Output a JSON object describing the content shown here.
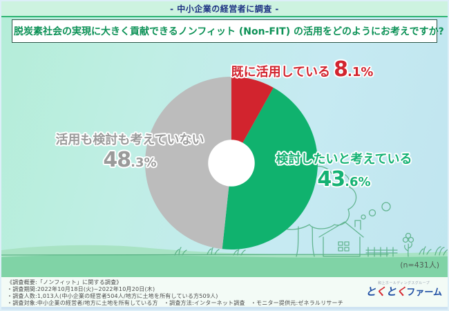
{
  "page": {
    "tagline": "- 中小企業の経営者に調査 -",
    "title": "脱炭素社会の実現に大きく貢献できるノンフィット (Non-FIT) の活用をどのようにお考えですか?"
  },
  "chart_data": {
    "type": "pie",
    "title": "脱炭素社会の実現に大きく貢献できるノンフィット (Non-FIT) の活用をどのようにお考えですか?",
    "donut": true,
    "hole_radius_ratio": 0.27,
    "start_angle_deg": 0,
    "direction": "clockwise",
    "unit": "%",
    "segments": [
      {
        "label": "既に活用している",
        "value": 8.1,
        "color": "#d2242e"
      },
      {
        "label": "検討したいと考えている",
        "value": 43.6,
        "color": "#10b26e"
      },
      {
        "label": "活用も検討も考えていない",
        "value": 48.3,
        "color": "#bcbcbc"
      }
    ],
    "sample_note": "(n=431人)"
  },
  "callouts": {
    "already": {
      "label": "既に活用している",
      "int": "8",
      "frac": ".1%"
    },
    "considering": {
      "label": "検討したいと考えている",
      "int": "43",
      "frac": ".6%"
    },
    "not_considering": {
      "label": "活用も検討も考えていない",
      "int": "48",
      "frac": ".3%"
    }
  },
  "footer": {
    "lines": [
      "《調査概要:「ノンフィット」に関する調査》",
      "・調査期間:2022年10月18日(火)~2022年10月20日(木)",
      "・調査人数:1,013人(中小企業の経営者504人/地方に土地を所有している方509人)",
      "・調査対象:中小企業の経営者/地方に土地を所有している方　・調査方法:インターネット調査　・モニター提供元:ゼネラルリサーチ"
    ]
  },
  "logo": {
    "group": "和上ホールディングスグループ",
    "mark": [
      {
        "ch": "と",
        "color": "#1f4ea3"
      },
      {
        "ch": "く",
        "color": "#d6252d"
      },
      {
        "ch": "と",
        "color": "#1f4ea3"
      },
      {
        "ch": "く",
        "color": "#d6252d"
      }
    ],
    "suffix": "ファーム"
  },
  "colors": {
    "accent_red": "#d2242e",
    "accent_green": "#10b26e",
    "neutral_gray": "#bcbcbc",
    "header_navy": "#1c3182",
    "title_green": "#0c9156",
    "grass_green": "#80d3a6",
    "hill_green": "#a8e3c4"
  }
}
